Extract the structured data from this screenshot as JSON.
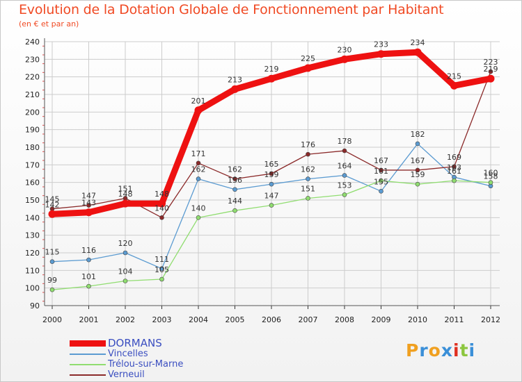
{
  "title": "Evolution de la Dotation Globale de Fonctionnement par Habitant",
  "subtitle": "(en € et par an)",
  "logo": {
    "letters": [
      "P",
      "r",
      "o",
      "x",
      "i",
      "t",
      "i"
    ],
    "colors": [
      "#f0a020",
      "#3a8fd8",
      "#f0a020",
      "#3a8fd8",
      "#e03020",
      "#8cc63f",
      "#3a8fd8"
    ]
  },
  "chart_data": {
    "type": "line",
    "title": "Evolution de la Dotation Globale de Fonctionnement par Habitant",
    "subtitle": "(en € et par an)",
    "x": [
      "2000",
      "2001",
      "2002",
      "2003",
      "2004",
      "2005",
      "2006",
      "2007",
      "2008",
      "2009",
      "2010",
      "2011",
      "2012"
    ],
    "yticks": [
      90,
      100,
      110,
      120,
      130,
      140,
      150,
      160,
      170,
      180,
      190,
      200,
      210,
      220,
      230,
      240
    ],
    "ylim": [
      90,
      240
    ],
    "series": [
      {
        "name": "DORMANS",
        "color": "#ee1111",
        "values": [
          142,
          143,
          148,
          148,
          201,
          213,
          219,
          225,
          230,
          233,
          234,
          215,
          219
        ]
      },
      {
        "name": "Vincelles",
        "color": "#5b9bd1",
        "values": [
          115,
          116,
          120,
          111,
          162,
          156,
          159,
          162,
          164,
          155,
          182,
          163,
          158
        ]
      },
      {
        "name": "Trélou-sur-Marne",
        "color": "#90dd70",
        "values": [
          99,
          101,
          104,
          105,
          140,
          144,
          147,
          151,
          153,
          161,
          159,
          161,
          160
        ]
      },
      {
        "name": "Verneuil",
        "color": "#8b2a2a",
        "values": [
          145,
          147,
          151,
          140,
          171,
          162,
          165,
          176,
          178,
          167,
          167,
          169,
          223
        ]
      }
    ]
  }
}
